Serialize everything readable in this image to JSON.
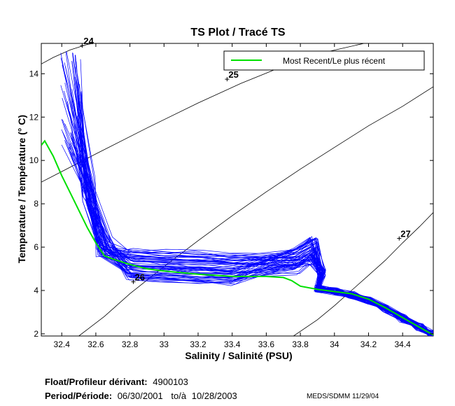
{
  "chart_data": {
    "type": "line",
    "title": "TS Plot / Tracé TS",
    "xlabel": "Salinity / Salinité (PSU)",
    "ylabel": "Temperature / Température (° C)",
    "xlim": [
      32.28,
      34.58
    ],
    "ylim": [
      1.9,
      15.4
    ],
    "x_ticks": [
      32.4,
      32.6,
      32.8,
      33,
      33.2,
      33.4,
      33.6,
      33.8,
      34,
      34.2,
      34.4
    ],
    "x_tick_labels": [
      "32.4",
      "32.6",
      "32.8",
      "33",
      "33.2",
      "33.4",
      "33.6",
      "33.8",
      "34",
      "34.2",
      "34.4"
    ],
    "y_ticks": [
      2,
      4,
      6,
      8,
      10,
      12,
      14
    ],
    "y_tick_labels": [
      "2",
      "4",
      "6",
      "8",
      "10",
      "12",
      "14"
    ],
    "grid": false,
    "legend_position": "top-right",
    "density_labels": [
      {
        "label": "24",
        "x": 32.52,
        "y": 15.3
      },
      {
        "label": "25",
        "x": 33.37,
        "y": 13.75
      },
      {
        "label": "26",
        "x": 32.82,
        "y": 4.4
      },
      {
        "label": "27",
        "x": 34.38,
        "y": 6.4
      }
    ],
    "density_contours": [
      {
        "x": [
          32.28,
          32.35,
          32.45,
          32.55,
          32.65
        ],
        "y": [
          14.45,
          14.75,
          15.1,
          15.35,
          15.5
        ]
      },
      {
        "x": [
          32.28,
          32.6,
          32.9,
          33.2,
          33.45,
          33.7,
          33.95,
          34.2
        ],
        "y": [
          9.0,
          10.3,
          11.5,
          12.65,
          13.55,
          14.35,
          15.0,
          15.45
        ]
      },
      {
        "x": [
          32.5,
          32.65,
          32.8,
          33.0,
          33.2,
          33.4,
          33.6,
          33.8,
          34.0,
          34.2,
          34.4,
          34.58
        ],
        "y": [
          1.9,
          2.8,
          3.85,
          5.1,
          6.3,
          7.45,
          8.55,
          9.6,
          10.6,
          11.6,
          12.5,
          13.4
        ]
      },
      {
        "x": [
          33.76,
          33.9,
          34.0,
          34.1,
          34.2,
          34.3,
          34.4,
          34.5,
          34.58
        ],
        "y": [
          1.9,
          2.65,
          3.3,
          4.0,
          4.7,
          5.4,
          6.2,
          6.95,
          7.6
        ]
      }
    ],
    "series": [
      {
        "name": "Most Recent/Le plus récent",
        "color": "#00e000",
        "x": [
          32.28,
          32.3,
          32.35,
          32.4,
          32.45,
          32.5,
          32.55,
          32.6,
          32.65,
          32.7,
          32.8,
          32.9,
          33.0,
          33.2,
          33.4,
          33.6,
          33.7,
          33.75,
          33.8,
          33.9,
          34.0,
          34.1,
          34.2,
          34.3,
          34.4,
          34.5,
          34.58
        ],
        "y": [
          10.7,
          10.9,
          10.2,
          9.3,
          8.5,
          7.7,
          6.9,
          6.2,
          5.6,
          5.45,
          5.2,
          5.0,
          4.9,
          4.75,
          4.65,
          4.65,
          4.6,
          4.45,
          4.2,
          4.05,
          3.95,
          3.85,
          3.6,
          3.2,
          2.75,
          2.3,
          1.95
        ]
      }
    ],
    "profile_band": {
      "name": "Profiles",
      "color": "#0000ff",
      "count": 60,
      "surface_x_range": [
        32.39,
        32.52
      ],
      "surface_y_range": [
        10.5,
        15.2
      ],
      "plateau_y_range": [
        4.5,
        5.9
      ],
      "bump_y_range": [
        5.0,
        6.5
      ],
      "deep_x": [
        33.9,
        34.0,
        34.1,
        34.2,
        34.3,
        34.4,
        34.5,
        34.58
      ],
      "deep_y": [
        4.1,
        3.95,
        3.8,
        3.55,
        3.15,
        2.7,
        2.3,
        1.95
      ]
    }
  },
  "footer": {
    "float_label": "Float/Profileur dérivant:",
    "float_value": "4900103",
    "period_label": "Period/Période:",
    "period_start": "06/30/2001",
    "period_to": "to/à",
    "period_end": "10/28/2003",
    "credit": "MEDS/SDMM  11/29/04"
  }
}
